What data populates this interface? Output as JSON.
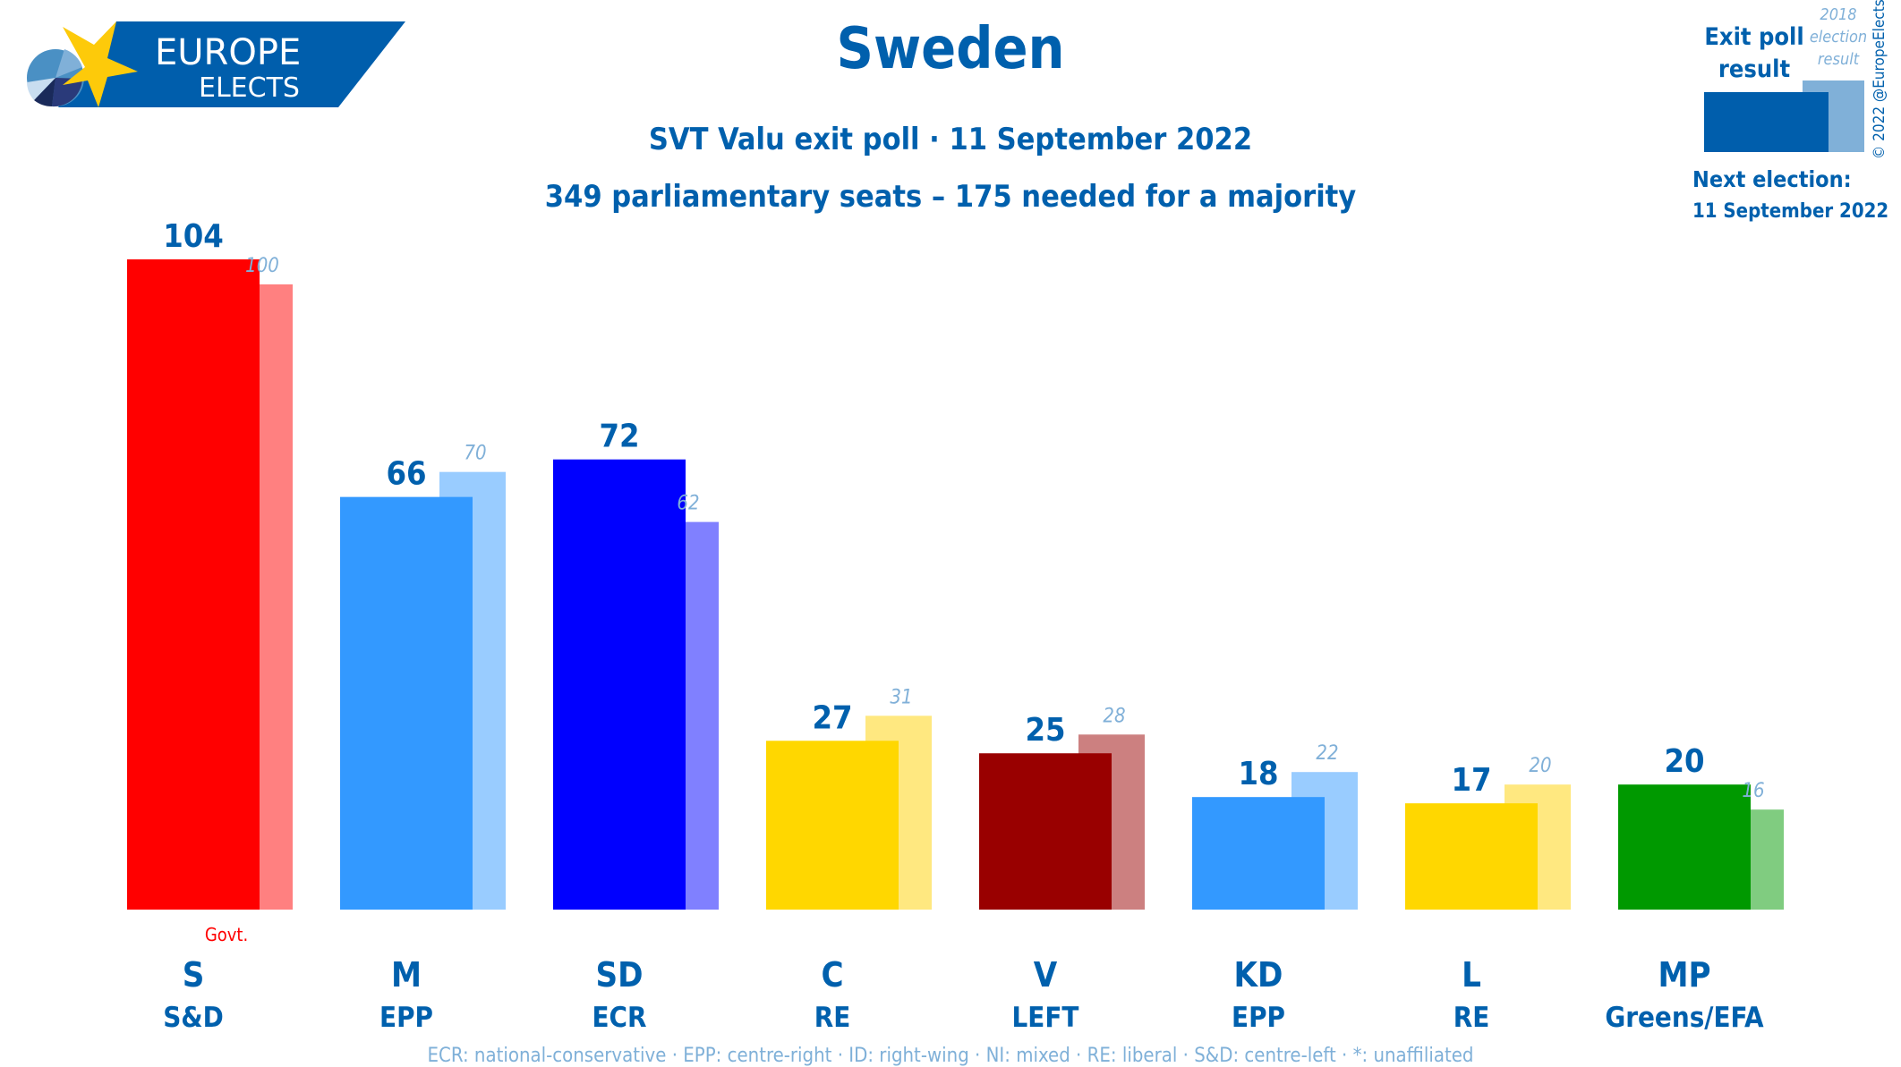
{
  "logo": {
    "line1": "EUROPE",
    "line2": "ELECTS"
  },
  "header": {
    "title": "Sweden",
    "subtitle": "SVT Valu exit poll · 11 September 2022",
    "seats_note": "349 parliamentary seats – 175 needed for a majority"
  },
  "legend": {
    "current_label": "Exit poll result",
    "previous_label": "2018 election result",
    "current_color": "#005eac",
    "previous_color": "#80b0d8",
    "next_election_label": "Next election:",
    "next_election_date": "11 September 2022",
    "copyright": "© 2022 @EuropeElects"
  },
  "footer": "ECR: national-conservative · EPP: centre-right · ID: right-wing · NI: mixed · RE: liberal · S&D: centre-left · *: unaffiliated",
  "chart_data": {
    "type": "bar",
    "categories": [
      "S",
      "M",
      "SD",
      "C",
      "V",
      "KD",
      "L",
      "MP"
    ],
    "groups": [
      "S&D",
      "EPP",
      "ECR",
      "RE",
      "LEFT",
      "EPP",
      "RE",
      "Greens/EFA"
    ],
    "series": [
      {
        "name": "Exit poll result",
        "values": [
          104,
          66,
          72,
          27,
          25,
          18,
          17,
          20
        ]
      },
      {
        "name": "2018 election result",
        "values": [
          100,
          70,
          62,
          31,
          28,
          22,
          20,
          16
        ]
      }
    ],
    "colors": [
      "#ff0000",
      "#3399ff",
      "#0000ff",
      "#ffd700",
      "#990000",
      "#3399ff",
      "#ffd700",
      "#009900"
    ],
    "previous_colors": [
      "#ff8080",
      "#99ccff",
      "#8080ff",
      "#ffe880",
      "#cc8080",
      "#99ccff",
      "#ffe880",
      "#80cc80"
    ],
    "annotations": [
      {
        "category": "S",
        "text": "Govt."
      }
    ],
    "ylim": [
      0,
      104
    ]
  }
}
